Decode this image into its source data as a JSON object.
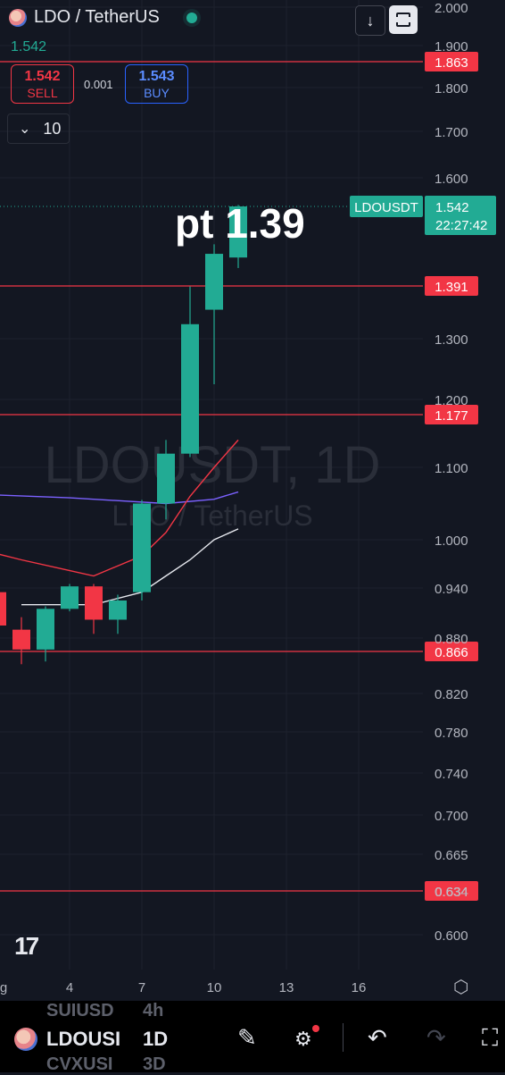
{
  "header": {
    "symbol_title": "LDO / TetherUS",
    "last_price": "1.542"
  },
  "trade": {
    "sell_price": "1.542",
    "sell_label": "SELL",
    "spread": "0.001",
    "buy_price": "1.543",
    "buy_label": "BUY"
  },
  "interval_selector": {
    "value": "10"
  },
  "watermark": {
    "symbol": "LDOUSDT, 1D",
    "name": "LDO / TetherUS"
  },
  "annotation": {
    "text": "pt 1.39"
  },
  "price_tag": {
    "symbol": "LDOUSDT",
    "price": "1.542",
    "countdown": "22:27:42"
  },
  "colors": {
    "background": "#131722",
    "up": "#22ab94",
    "down": "#f23645",
    "hline": "#f23645",
    "ma_purple": "#7b61ff",
    "ma_red": "#f23645",
    "ma_white": "#e6e8ee"
  },
  "chart_data": {
    "type": "candlestick",
    "y_axis_ticks": [
      "2.000",
      "1.900",
      "1.800",
      "1.700",
      "1.600",
      "1.300",
      "1.200",
      "1.100",
      "1.000",
      "0.940",
      "0.880",
      "0.820",
      "0.780",
      "0.740",
      "0.700",
      "0.665",
      "0.634",
      "0.600"
    ],
    "x_axis_ticks": [
      "g",
      "4",
      "7",
      "10",
      "13",
      "16"
    ],
    "horizontal_lines": [
      {
        "price": 1.863,
        "label": "1.863"
      },
      {
        "price": 1.391,
        "label": "1.391"
      },
      {
        "price": 1.177,
        "label": "1.177"
      },
      {
        "price": 0.866,
        "label": "0.866"
      },
      {
        "price": 0.634,
        "label": "0.634"
      }
    ],
    "candles": [
      {
        "day": 1,
        "open": 0.935,
        "high": 0.945,
        "low": 0.885,
        "close": 0.895
      },
      {
        "day": 2,
        "open": 0.89,
        "high": 0.905,
        "low": 0.852,
        "close": 0.868
      },
      {
        "day": 3,
        "open": 0.868,
        "high": 0.918,
        "low": 0.855,
        "close": 0.915
      },
      {
        "day": 4,
        "open": 0.915,
        "high": 0.945,
        "low": 0.912,
        "close": 0.942
      },
      {
        "day": 5,
        "open": 0.942,
        "high": 0.945,
        "low": 0.885,
        "close": 0.902
      },
      {
        "day": 6,
        "open": 0.902,
        "high": 0.932,
        "low": 0.885,
        "close": 0.925
      },
      {
        "day": 7,
        "open": 0.935,
        "high": 1.055,
        "low": 0.925,
        "close": 1.05
      },
      {
        "day": 8,
        "open": 1.05,
        "high": 1.14,
        "low": 1.028,
        "close": 1.12
      },
      {
        "day": 9,
        "open": 1.12,
        "high": 1.39,
        "low": 1.115,
        "close": 1.325
      },
      {
        "day": 10,
        "open": 1.35,
        "high": 1.47,
        "low": 1.225,
        "close": 1.452
      },
      {
        "day": 11,
        "open": 1.445,
        "high": 1.545,
        "low": 1.425,
        "close": 1.542
      }
    ],
    "moving_averages": [
      {
        "color": "purple",
        "points": [
          [
            0,
            1.063
          ],
          [
            4,
            1.058
          ],
          [
            8,
            1.05
          ],
          [
            10,
            1.056
          ],
          [
            11,
            1.066
          ]
        ]
      },
      {
        "color": "red",
        "points": [
          [
            0,
            0.99
          ],
          [
            2,
            0.975
          ],
          [
            5,
            0.955
          ],
          [
            7,
            0.98
          ],
          [
            8,
            1.01
          ],
          [
            9,
            1.06
          ],
          [
            10,
            1.1
          ],
          [
            11,
            1.14
          ]
        ]
      },
      {
        "color": "white",
        "points": [
          [
            2,
            0.92
          ],
          [
            5,
            0.92
          ],
          [
            7,
            0.935
          ],
          [
            8,
            0.955
          ],
          [
            9,
            0.975
          ],
          [
            10,
            1.0
          ],
          [
            11,
            1.015
          ]
        ]
      }
    ]
  },
  "bottom_bar": {
    "ghost_top_symbol": "SUIUSD",
    "ghost_top_interval": "4h",
    "symbol": "LDOUSI",
    "interval": "1D",
    "ghost_bottom_symbol": "CVXUSI",
    "ghost_bottom_interval": "3D",
    "icons": [
      "pencil-icon",
      "sliders-icon",
      "undo-icon",
      "redo-icon",
      "fullscreen-icon"
    ]
  }
}
